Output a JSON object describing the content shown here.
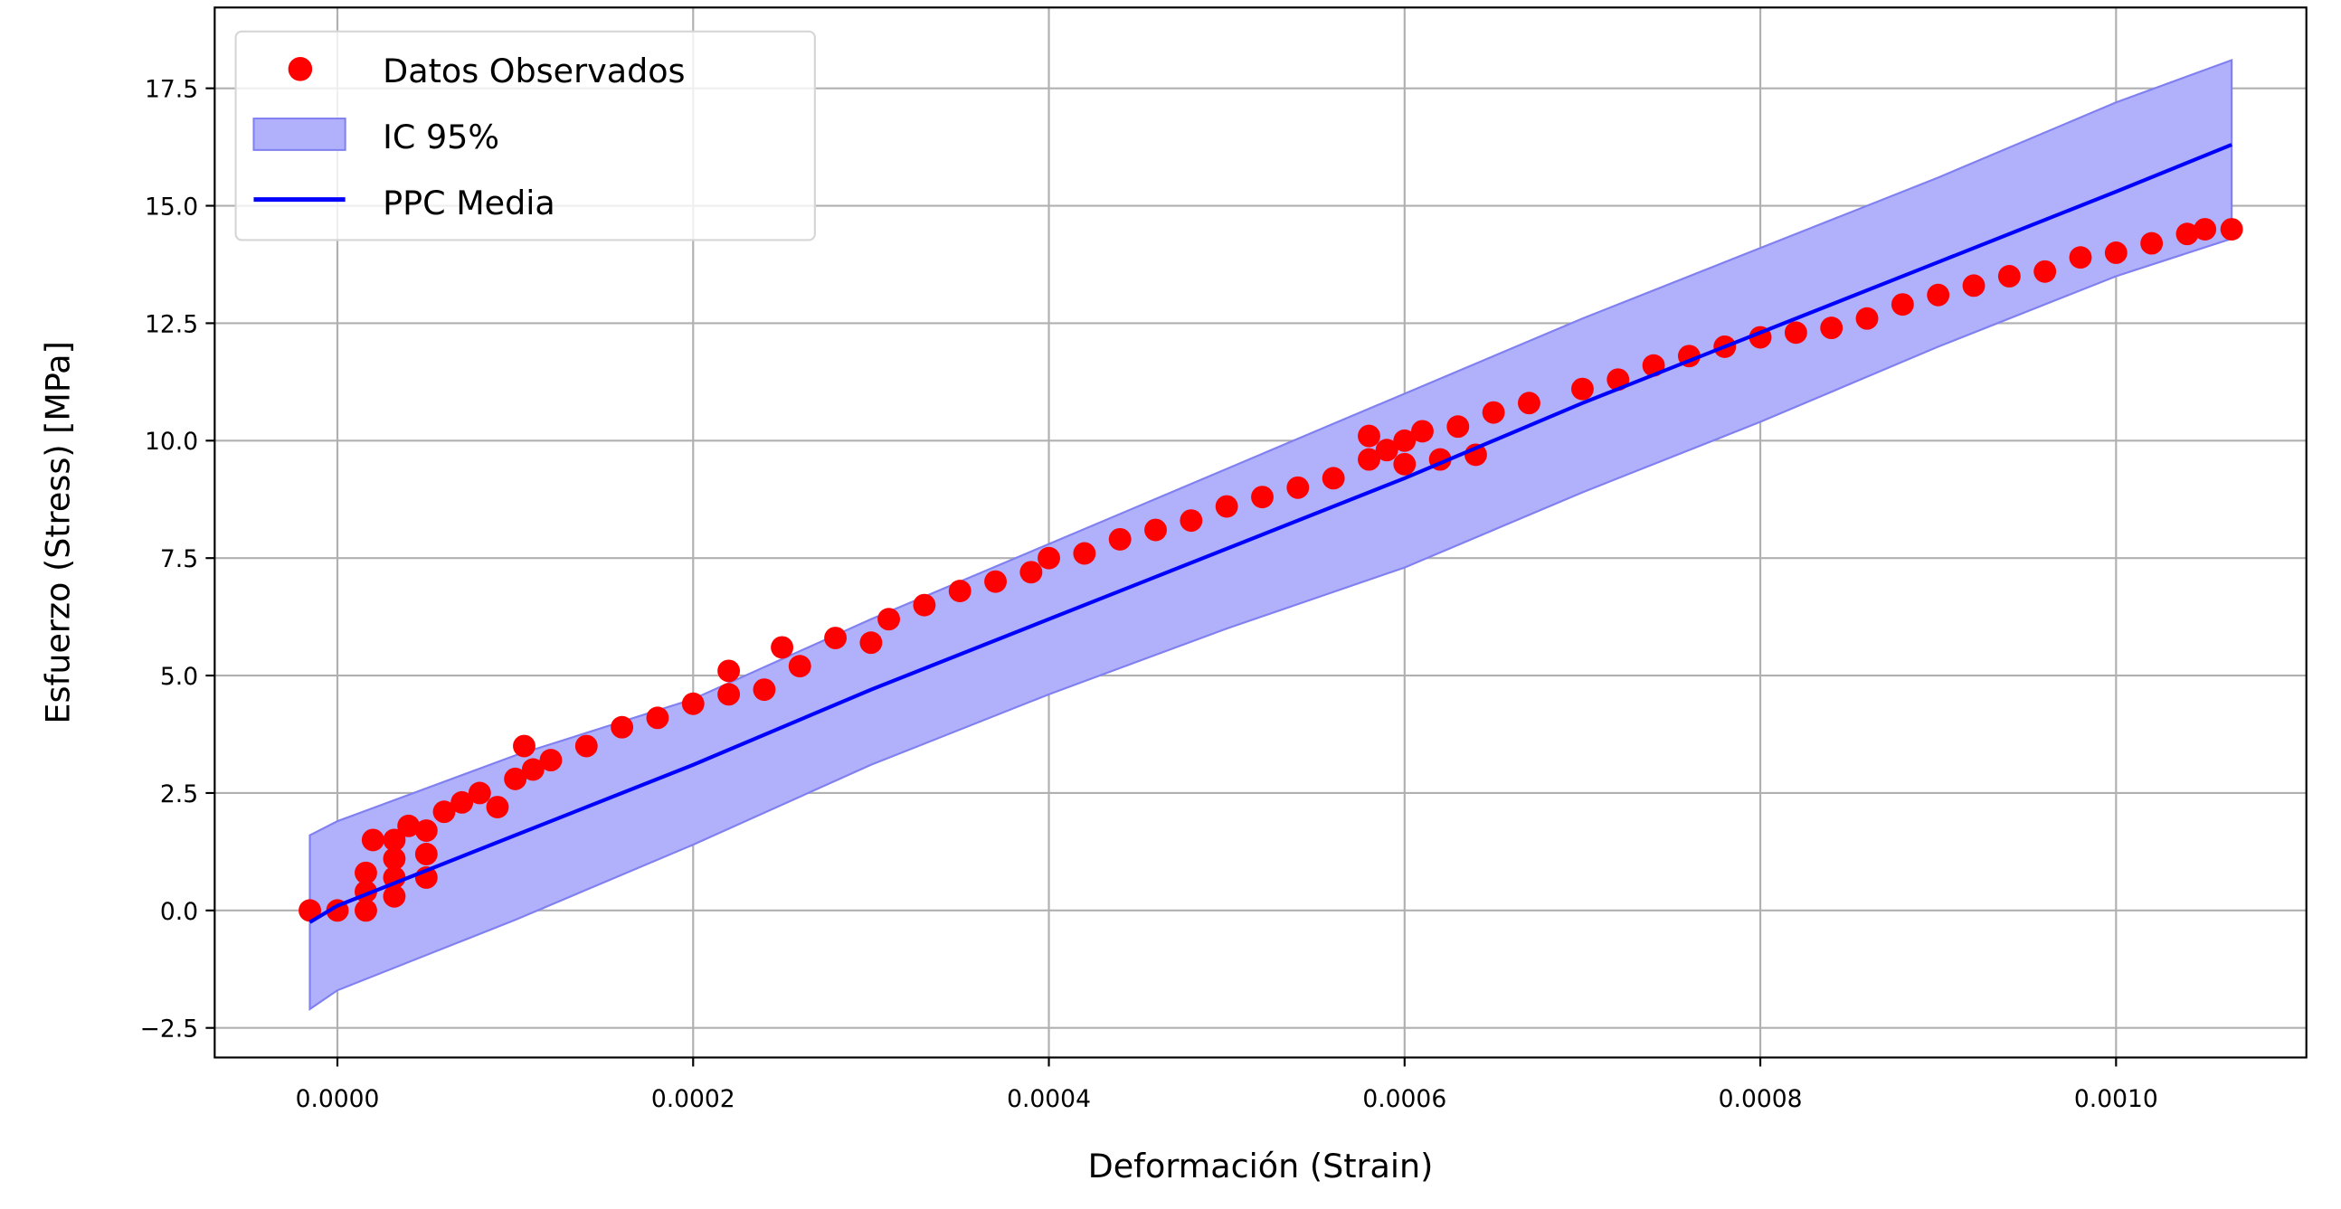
{
  "chart_data": {
    "type": "scatter",
    "title": "",
    "xlabel": "Deformación (Strain)",
    "ylabel": "Esfuerzo (Stress) [MPa]",
    "xlim": [
      -6.9e-05,
      0.001107
    ],
    "ylim": [
      -3.13,
      19.22
    ],
    "grid": true,
    "legend_position": "top-left",
    "x_ticks": [
      0,
      0.0002,
      0.0004,
      0.0006,
      0.0008,
      0.001
    ],
    "x_tick_labels": [
      "0.0000",
      "0.0002",
      "0.0004",
      "0.0006",
      "0.0008",
      "0.0010"
    ],
    "y_ticks": [
      -2.5,
      0,
      2.5,
      5,
      7.5,
      10,
      12.5,
      15,
      17.5
    ],
    "y_tick_labels": [
      "−2.5",
      "0.0",
      "2.5",
      "5.0",
      "7.5",
      "10.0",
      "12.5",
      "15.0",
      "17.5"
    ],
    "colors": {
      "observed": "#ff0000",
      "band_fill": "#b0b0fb",
      "band_edge": "#8080f0",
      "mean": "#0000ff"
    },
    "legend": [
      "Datos Observados",
      "IC 95%",
      "PPC Media"
    ],
    "series": [
      {
        "name": "Datos Observados",
        "kind": "scatter",
        "points": [
          [
            -1.55e-05,
            0
          ],
          [
            0,
            0
          ],
          [
            1.6e-05,
            0
          ],
          [
            1.6e-05,
            0.4
          ],
          [
            1.6e-05,
            0.8
          ],
          [
            2e-05,
            1.5
          ],
          [
            3.2e-05,
            0.3
          ],
          [
            3.2e-05,
            0.7
          ],
          [
            3.2e-05,
            1.1
          ],
          [
            3.2e-05,
            1.5
          ],
          [
            4e-05,
            1.8
          ],
          [
            5e-05,
            0.7
          ],
          [
            5e-05,
            1.2
          ],
          [
            5e-05,
            1.7
          ],
          [
            6e-05,
            2.1
          ],
          [
            7e-05,
            2.3
          ],
          [
            8e-05,
            2.5
          ],
          [
            9e-05,
            2.2
          ],
          [
            0.0001,
            2.8
          ],
          [
            0.000105,
            3.5
          ],
          [
            0.00011,
            3.0
          ],
          [
            0.00012,
            3.2
          ],
          [
            0.00014,
            3.5
          ],
          [
            0.00016,
            3.9
          ],
          [
            0.00018,
            4.1
          ],
          [
            0.0002,
            4.4
          ],
          [
            0.00022,
            4.6
          ],
          [
            0.00022,
            5.1
          ],
          [
            0.00024,
            4.7
          ],
          [
            0.00025,
            5.6
          ],
          [
            0.00026,
            5.2
          ],
          [
            0.00028,
            5.8
          ],
          [
            0.0003,
            5.7
          ],
          [
            0.00031,
            6.2
          ],
          [
            0.00033,
            6.5
          ],
          [
            0.00035,
            6.8
          ],
          [
            0.00037,
            7.0
          ],
          [
            0.00039,
            7.2
          ],
          [
            0.0004,
            7.5
          ],
          [
            0.00042,
            7.6
          ],
          [
            0.00044,
            7.9
          ],
          [
            0.00046,
            8.1
          ],
          [
            0.00048,
            8.3
          ],
          [
            0.0005,
            8.6
          ],
          [
            0.00052,
            8.8
          ],
          [
            0.00054,
            9.0
          ],
          [
            0.00056,
            9.2
          ],
          [
            0.00058,
            9.6
          ],
          [
            0.00058,
            10.1
          ],
          [
            0.00059,
            9.8
          ],
          [
            0.0006,
            10.0
          ],
          [
            0.0006,
            9.5
          ],
          [
            0.00061,
            10.2
          ],
          [
            0.00062,
            9.6
          ],
          [
            0.00063,
            10.3
          ],
          [
            0.00064,
            9.7
          ],
          [
            0.00065,
            10.6
          ],
          [
            0.00067,
            10.8
          ],
          [
            0.0007,
            11.1
          ],
          [
            0.00072,
            11.3
          ],
          [
            0.00074,
            11.6
          ],
          [
            0.00076,
            11.8
          ],
          [
            0.00078,
            12.0
          ],
          [
            0.0008,
            12.2
          ],
          [
            0.00082,
            12.3
          ],
          [
            0.00084,
            12.4
          ],
          [
            0.00086,
            12.6
          ],
          [
            0.00088,
            12.9
          ],
          [
            0.0009,
            13.1
          ],
          [
            0.00092,
            13.3
          ],
          [
            0.00094,
            13.5
          ],
          [
            0.00096,
            13.6
          ],
          [
            0.00098,
            13.9
          ],
          [
            0.001,
            14.0
          ],
          [
            0.00102,
            14.2
          ],
          [
            0.00104,
            14.4
          ],
          [
            0.00105,
            14.5
          ],
          [
            0.001065,
            14.5
          ]
        ]
      },
      {
        "name": "IC 95%",
        "kind": "band",
        "x": [
          -1.55e-05,
          0,
          0.0001,
          0.0002,
          0.0003,
          0.0004,
          0.0005,
          0.0006,
          0.0007,
          0.0008,
          0.0009,
          0.001,
          0.001065
        ],
        "lower": [
          -2.1,
          -1.7,
          -0.2,
          1.4,
          3.1,
          4.6,
          6.0,
          7.3,
          8.9,
          10.4,
          12.0,
          13.5,
          14.3
        ],
        "upper": [
          1.6,
          1.9,
          3.3,
          4.5,
          6.2,
          7.8,
          9.4,
          11.0,
          12.6,
          14.1,
          15.6,
          17.2,
          18.1
        ]
      },
      {
        "name": "PPC Media",
        "kind": "line",
        "x": [
          -1.55e-05,
          0,
          0.0001,
          0.0002,
          0.0003,
          0.0004,
          0.0005,
          0.0006,
          0.0007,
          0.0008,
          0.0009,
          0.001,
          0.001065
        ],
        "y": [
          -0.25,
          0.1,
          1.6,
          3.1,
          4.7,
          6.2,
          7.7,
          9.2,
          10.8,
          12.3,
          13.8,
          15.3,
          16.3
        ]
      }
    ]
  }
}
